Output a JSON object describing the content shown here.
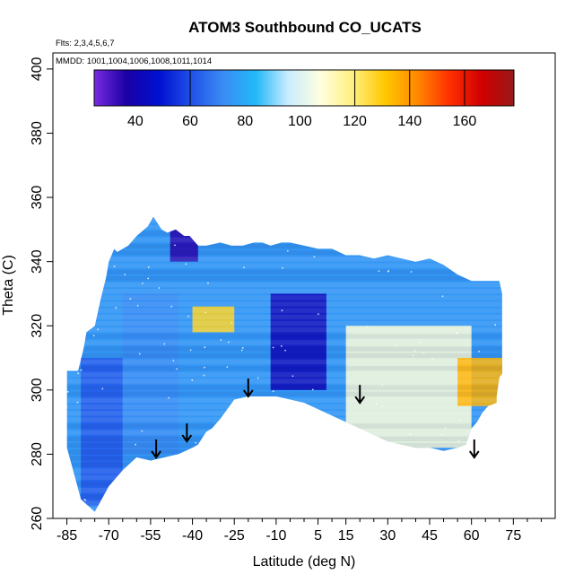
{
  "chart_data": {
    "type": "heatmap",
    "title": "ATOM3 Southbound CO_UCATS",
    "subtitle_flights": "Flts: 2,3,4,5,6,7",
    "subtitle_dates": "MMDD: 1001,1004,1006,1008,1011,1014",
    "xlabel": "Latitude (deg N)",
    "ylabel": "Theta (C)",
    "xlim": [
      -90,
      90
    ],
    "ylim": [
      260,
      405
    ],
    "x_ticks": [
      -85,
      -70,
      -55,
      -40,
      -25,
      -10,
      5,
      15,
      30,
      45,
      60,
      75
    ],
    "x_minor_ticks": [
      -80,
      -75,
      -65,
      -60,
      -50,
      -45,
      -35,
      -30,
      -20,
      -15,
      -5,
      0,
      10,
      20,
      25,
      35,
      40,
      50,
      55,
      65,
      70,
      80,
      85
    ],
    "y_ticks": [
      260,
      280,
      300,
      320,
      340,
      360,
      380,
      400
    ],
    "colorbar": {
      "range": [
        25,
        178
      ],
      "ticks": [
        40,
        60,
        80,
        100,
        120,
        140,
        160
      ],
      "colors": [
        "#7a2be0",
        "#1a00a6",
        "#0010d0",
        "#2050e8",
        "#3a8cf4",
        "#22b8f8",
        "#c8ecff",
        "#ffffe0",
        "#fff080",
        "#ffc800",
        "#ff8800",
        "#ff3000",
        "#d00000",
        "#9a1818"
      ],
      "dividers": [
        60,
        120,
        140,
        160
      ]
    },
    "arrows_lat": [
      -53,
      -42,
      -20,
      20,
      61
    ],
    "arrow_bases_theta": [
      279,
      284,
      298,
      296,
      279
    ],
    "field_boundary": {
      "lat": [
        -85,
        -85,
        -81,
        -79,
        -78,
        -75,
        -73,
        -71,
        -70,
        -68,
        -67,
        -63,
        -60,
        -56,
        -54,
        -51,
        -49,
        -46,
        -43,
        -41,
        -38,
        -35,
        -30,
        -26,
        -22,
        -18,
        -15,
        -12,
        -8,
        -5,
        0,
        5,
        10,
        15,
        20,
        25,
        30,
        35,
        40,
        45,
        50,
        55,
        60,
        65,
        70,
        71,
        71,
        70,
        69,
        69,
        66,
        64,
        62,
        60,
        58,
        55,
        50,
        45,
        40,
        35,
        30,
        20,
        10,
        0,
        -10,
        -20,
        -25,
        -30,
        -33,
        -35,
        -38,
        -40,
        -45,
        -50,
        -55,
        -60,
        -65,
        -70,
        -75,
        -80,
        -85
      ],
      "theta": [
        282,
        306,
        306,
        313,
        318,
        320,
        328,
        335,
        340,
        344,
        343,
        345,
        348,
        351,
        354,
        350,
        349,
        350,
        348,
        348,
        345,
        345,
        346,
        345,
        345,
        346,
        346,
        345,
        346,
        346,
        345,
        344,
        344,
        342,
        342,
        341,
        342,
        341,
        340,
        341,
        339,
        336,
        334,
        334,
        334,
        330,
        305,
        304,
        298,
        296,
        295,
        293,
        290,
        288,
        283,
        282,
        281,
        282,
        282,
        283,
        284,
        288,
        292,
        296,
        298,
        298,
        297,
        291,
        288,
        287,
        283,
        282,
        280,
        279,
        278,
        279,
        275,
        270,
        262,
        266,
        282
      ],
      "note_gap": []
    },
    "features": [
      {
        "lat": [
          -80,
          -65
        ],
        "theta": [
          264,
          310
        ],
        "value": 62
      },
      {
        "lat": [
          -65,
          -45
        ],
        "theta": [
          280,
          330
        ],
        "value": 72
      },
      {
        "lat": [
          -40,
          -25
        ],
        "theta": [
          318,
          326
        ],
        "value": 128
      },
      {
        "lat": [
          -12,
          8
        ],
        "theta": [
          300,
          330
        ],
        "value": 42
      },
      {
        "lat": [
          15,
          60
        ],
        "theta": [
          282,
          320
        ],
        "value": 108
      },
      {
        "lat": [
          55,
          71
        ],
        "theta": [
          295,
          310
        ],
        "value": 135
      },
      {
        "lat": [
          -48,
          -38
        ],
        "theta": [
          340,
          350
        ],
        "value": 35
      }
    ]
  }
}
